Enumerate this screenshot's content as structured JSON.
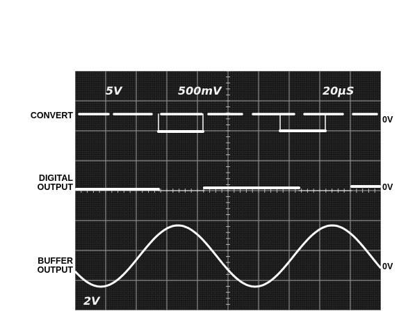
{
  "scope_settings": {
    "ch1_scale": "5V",
    "ch2_scale": "500mV",
    "timebase": "20μS",
    "ch3_scale": "2V"
  },
  "traces": [
    {
      "label": "CONVERT",
      "zero_label": "0V"
    },
    {
      "label": "DIGITAL OUTPUT",
      "label_lines": [
        "DIGITAL",
        "OUTPUT"
      ],
      "zero_label": "0V"
    },
    {
      "label": "BUFFER OUTPUT",
      "label_lines": [
        "BUFFER",
        "OUTPUT"
      ],
      "zero_label": "0V"
    }
  ],
  "colors": {
    "trace": "#ffffff",
    "screen": "#1a1a1a",
    "label_text": "#000000"
  }
}
